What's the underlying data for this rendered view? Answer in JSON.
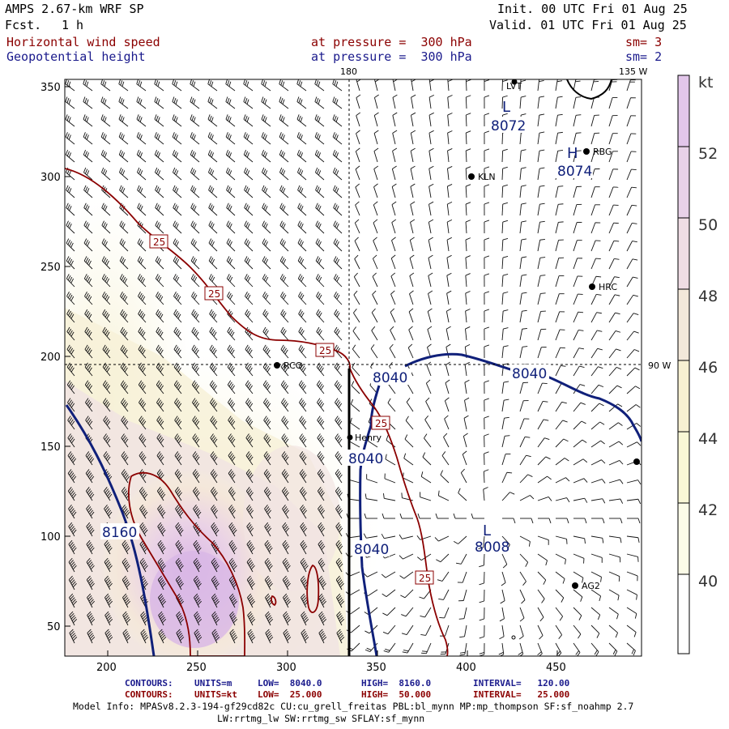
{
  "header": {
    "model": "AMPS 2.67-km WRF SP",
    "fcst_label": "Fcst.",
    "fcst_value": "1 h",
    "init": "Init. 00 UTC Fri 01 Aug 25",
    "valid": "Valid. 01 UTC Fri 01 Aug 25",
    "field1": "Horizontal wind speed",
    "field2": "Geopotential height",
    "level1": "at pressure =  300 hPa",
    "level2": "at pressure =  300 hPa",
    "sm1": "sm= 3",
    "sm2": "sm= 2"
  },
  "map": {
    "lon_labels": [
      "180",
      "135 W",
      "90 W"
    ],
    "station_labels": [
      "LVT",
      "RBG",
      "KLN",
      "HRC",
      "RCO",
      "Henry",
      "AG2"
    ],
    "height_labels": [
      "8072",
      "8074",
      "8040",
      "8040",
      "8040",
      "8040",
      "8160",
      "8008"
    ],
    "high_low_symbols": [
      "L",
      "H",
      "L"
    ],
    "speed_labels": [
      "25",
      "25",
      "25",
      "25",
      "25"
    ],
    "colors": {
      "height_contour": "#10207a",
      "speed_contour": "#8b0000",
      "barb": "#111111"
    }
  },
  "axes": {
    "x_ticks": [
      "200",
      "250",
      "300",
      "350",
      "400",
      "450"
    ],
    "y_ticks": [
      "350",
      "300",
      "250",
      "200",
      "150",
      "100",
      "50"
    ]
  },
  "colorbar": {
    "unit": "kt",
    "labels": [
      "52",
      "50",
      "48",
      "46",
      "44",
      "42",
      "40"
    ],
    "colors": [
      "#e3cfe8",
      "#ead9e8",
      "#f0e2e4",
      "#f4ebdc",
      "#f7f2d0",
      "#fafbe0",
      "#ffffff"
    ]
  },
  "footer": {
    "line1": {
      "contours": "CONTOURS:",
      "units": "UNITS=m",
      "low": "LOW=  8040.0",
      "high": "HIGH=  8160.0",
      "interval": "INTERVAL=   120.00"
    },
    "line2": {
      "contours": "CONTOURS:",
      "units": "UNITS=kt",
      "low": "LOW=  25.000",
      "high": "HIGH=  50.000",
      "interval": "INTERVAL=   25.000"
    },
    "model_info": "Model Info: MPASv8.2.3-194-gf29cd82c CU:cu_grell_freitas PBL:bl_mynn MP:mp_thompson SF:sf_noahmp 2.7",
    "model_info2": "LW:rrtmg_lw SW:rrtmg_sw SFLAY:sf_mynn"
  }
}
